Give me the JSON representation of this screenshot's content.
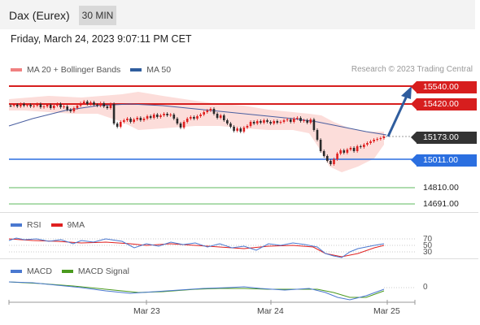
{
  "header": {
    "title": "Dax (Eurex)",
    "timeframe": "30 MIN"
  },
  "datetime": "Friday, March 24, 2023 9:07:11 PM CET",
  "main_legend": {
    "items": [
      {
        "label": "MA 20 + Bollinger Bands",
        "color": "#f08080"
      },
      {
        "label": "MA 50",
        "color": "#2f5d9e"
      }
    ],
    "copyright": "Research © 2023 Trading Central"
  },
  "price_levels": {
    "resistance_2": "15540.00",
    "resistance_1": "15420.00",
    "last_price": "15173.00",
    "pivot": "15011.00",
    "support_1": "14810.00",
    "support_2": "14691.00"
  },
  "rsi_legend": {
    "items": [
      {
        "label": "RSI",
        "color": "#4a78d0"
      },
      {
        "label": "9MA",
        "color": "#e02020"
      }
    ],
    "levels": [
      "70",
      "50",
      "30"
    ]
  },
  "macd_legend": {
    "items": [
      {
        "label": "MACD",
        "color": "#4a78d0"
      },
      {
        "label": "MACD Signal",
        "color": "#4a9a1e"
      }
    ],
    "zero_label": "0"
  },
  "x_axis": {
    "labels": [
      "Mar 23",
      "Mar 24",
      "Mar 25"
    ]
  },
  "colors": {
    "up_candle": "#e02020",
    "down_candle": "#2a2a2a",
    "bollinger_fill": "#fbd7d4",
    "ma50": "#4a5fa0",
    "resistance": "#d71e1e",
    "pivot": "#2b6fe0",
    "support": "#5cb85c",
    "arrow": "#2f5d9e"
  }
}
